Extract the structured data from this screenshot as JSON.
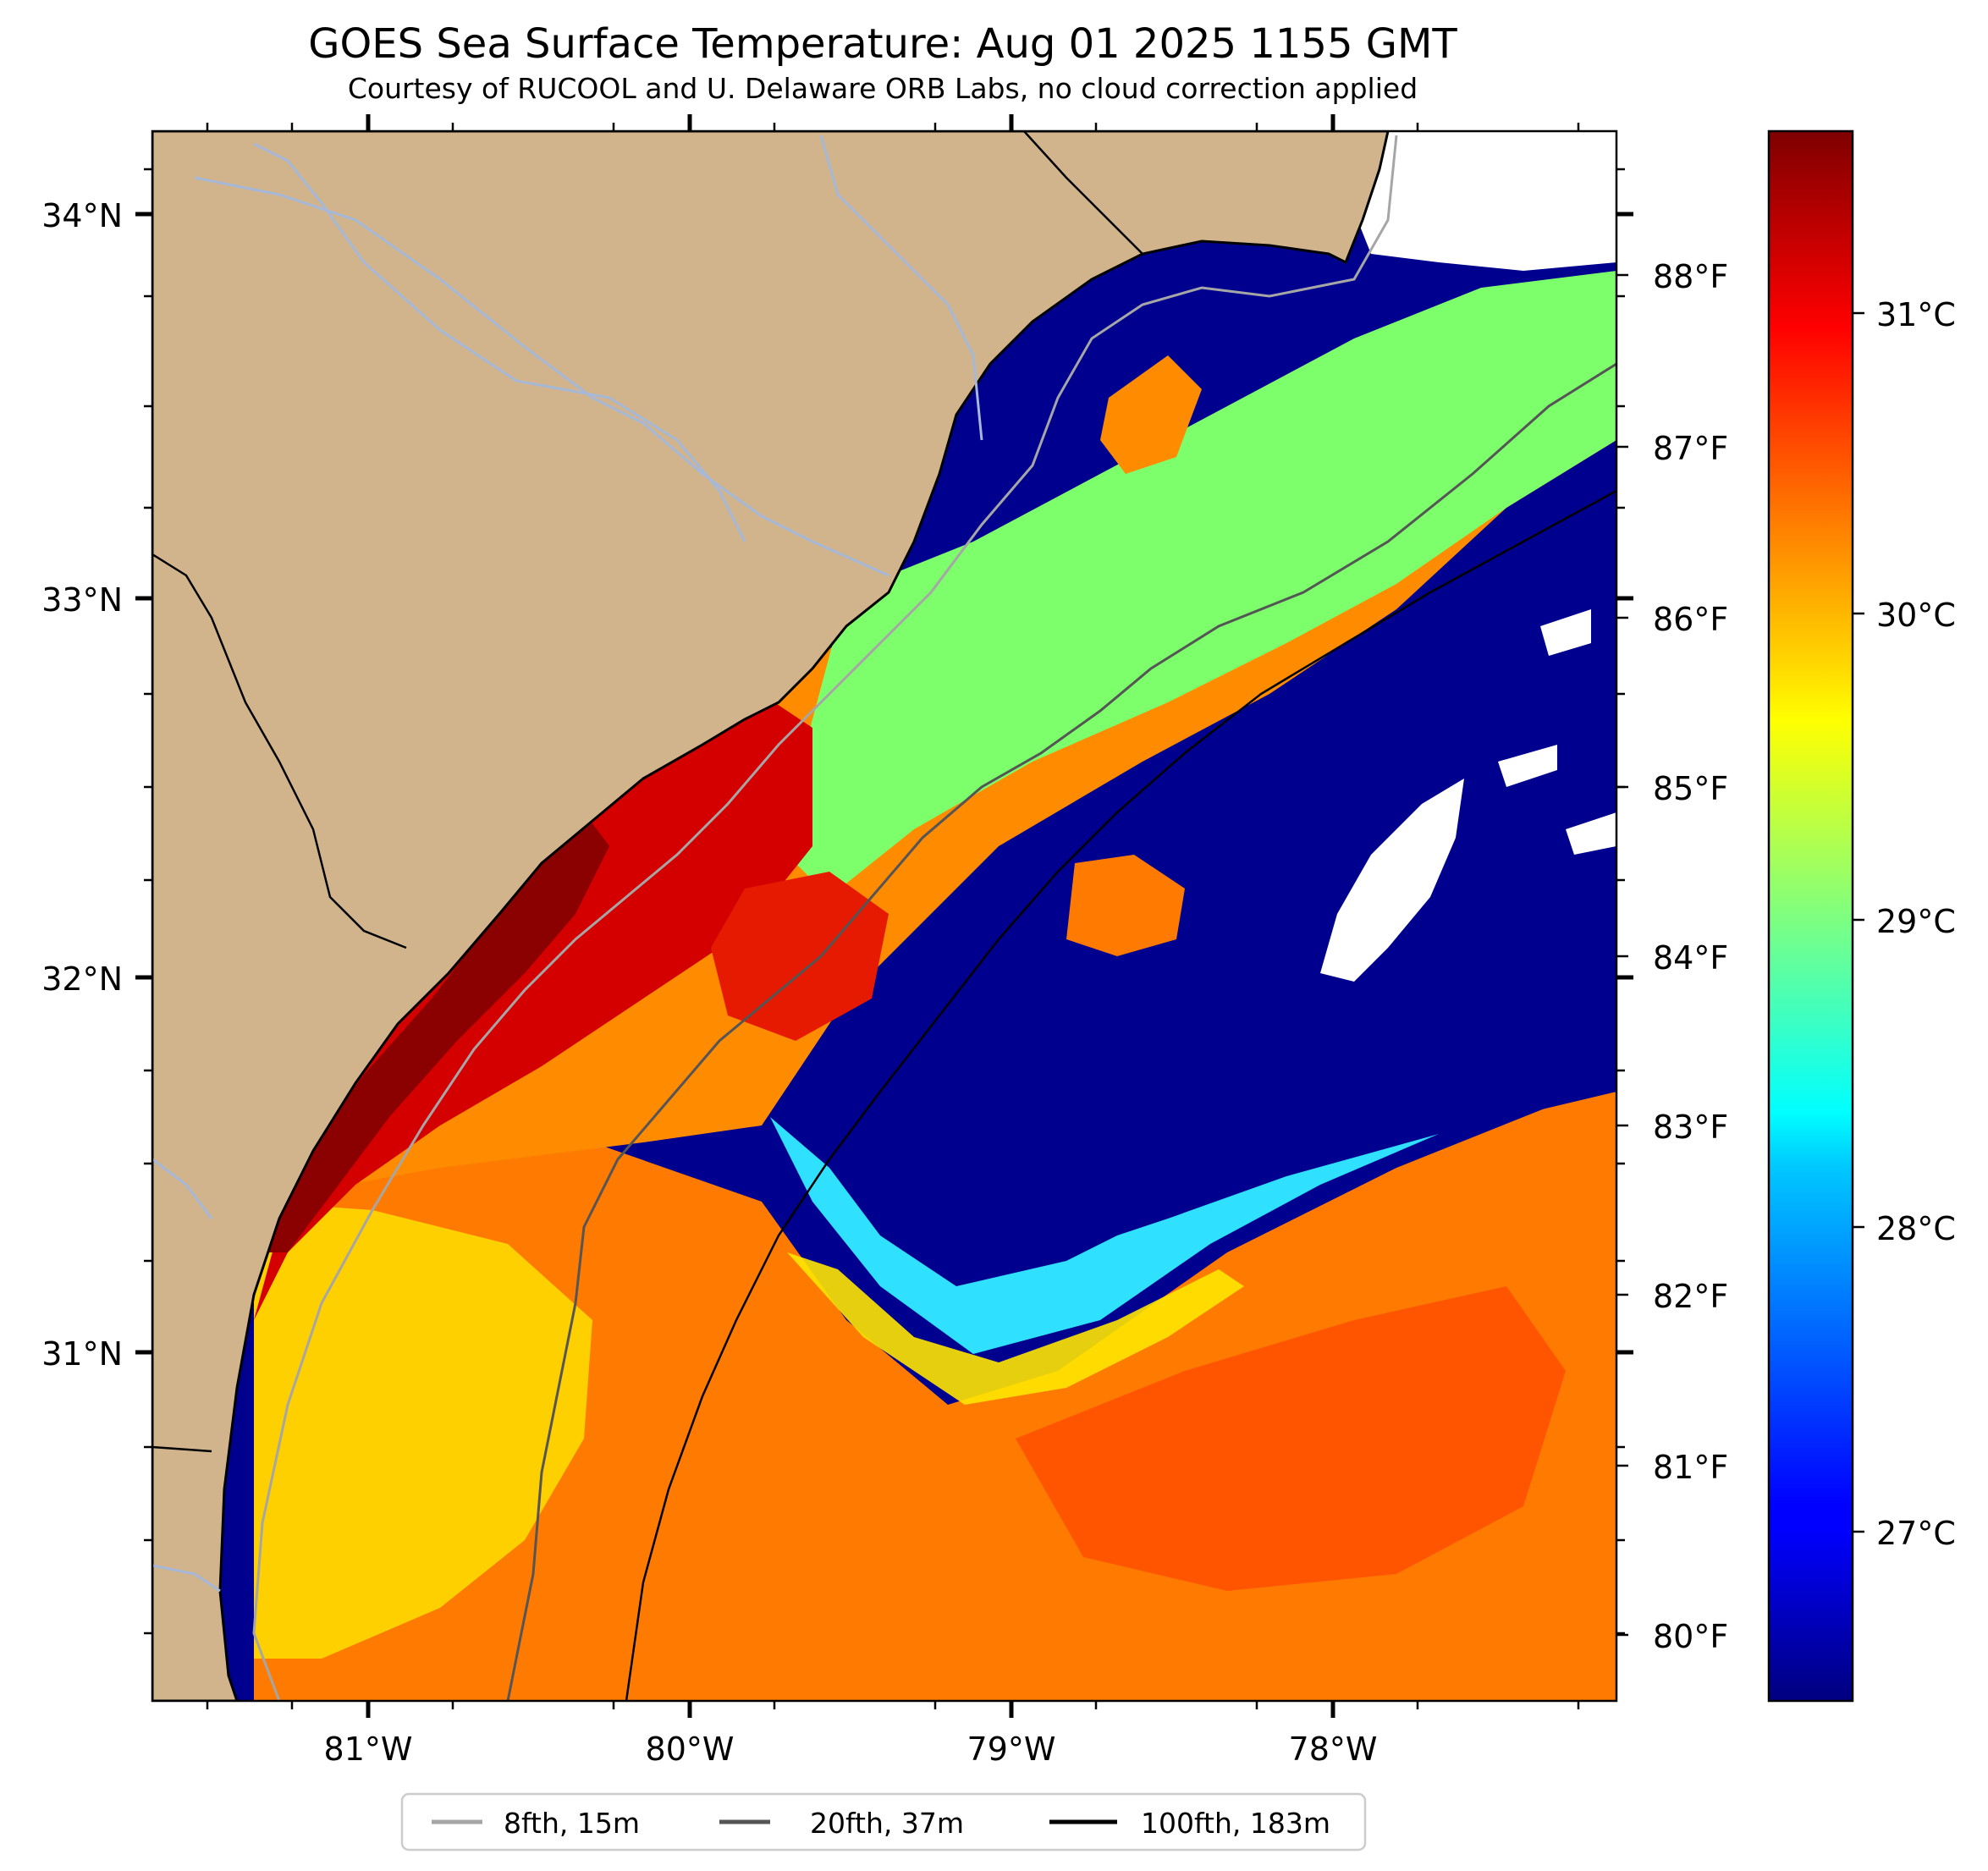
{
  "title": "GOES Sea Surface Temperature: Aug 01 2025 1155 GMT",
  "subtitle": "Courtesy of RUCOOL and U. Delaware ORB Labs, no cloud correction applied",
  "map": {
    "lat_ticks": [
      "34°N",
      "33°N",
      "32°N",
      "31°N"
    ],
    "lon_ticks": [
      "81°W",
      "80°W",
      "79°W",
      "78°W"
    ],
    "fahrenheit_ticks": [
      "88°F",
      "87°F",
      "86°F",
      "85°F",
      "84°F",
      "83°F",
      "82°F",
      "81°F",
      "80°F"
    ],
    "lat_range": [
      30.1,
      34.2
    ],
    "lon_range": [
      -81.66,
      -77.1
    ],
    "land_color": "#d2b48c",
    "cloud_color": "#ffffff"
  },
  "colorbar": {
    "colormap": "jet",
    "ticks": [
      "31°C",
      "30°C",
      "29°C",
      "28°C",
      "27°C"
    ],
    "range_c": [
      26.4,
      31.7
    ]
  },
  "legend": {
    "entries": [
      {
        "label": "8fth, 15m",
        "color": "#a6a6a6"
      },
      {
        "label": "20fth, 37m",
        "color": "#555555"
      },
      {
        "label": "100fth, 183m",
        "color": "#000000"
      }
    ]
  }
}
